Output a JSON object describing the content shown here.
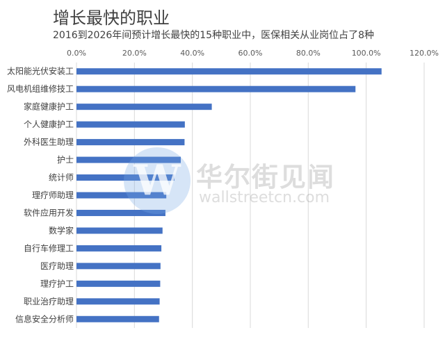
{
  "chart_data": {
    "type": "bar",
    "orientation": "horizontal",
    "title": "增长最快的职业",
    "subtitle": "2016到2026年间预计增长最快的15种职业中，医保相关从业岗位占了8种",
    "categories": [
      "太阳能光伏安装工",
      "风电机组维修技工",
      "家庭健康护工",
      "个人健康护工",
      "外科医生助理",
      "护士",
      "统计师",
      "理疗师助理",
      "软件应用开发",
      "数学家",
      "自行车修理工",
      "医疗助理",
      "理疗护工",
      "职业治疗助理",
      "信息安全分析师"
    ],
    "values": [
      105.3,
      96.3,
      46.7,
      37.4,
      37.3,
      36.0,
      33.8,
      31.0,
      30.7,
      29.7,
      29.3,
      29.0,
      28.9,
      28.7,
      28.5
    ],
    "xlim": [
      0,
      120
    ],
    "ticks": [
      "0.0%",
      "20.0%",
      "40.0%",
      "60.0%",
      "80.0%",
      "100.0%",
      "120.0%"
    ],
    "tick_values": [
      0,
      20,
      40,
      60,
      80,
      100,
      120
    ],
    "axis_position": "top",
    "grid": true,
    "bar_color": "#4472c4"
  },
  "watermark": {
    "logo_letter": "W",
    "cn": "华尔街见闻",
    "en": "wallstreetcn.com"
  }
}
